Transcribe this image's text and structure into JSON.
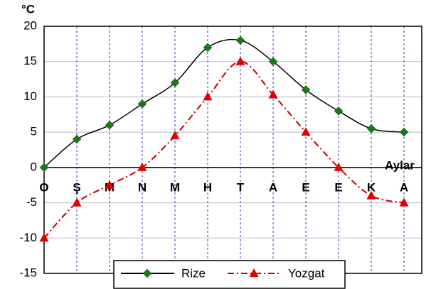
{
  "chart_data": {
    "type": "line",
    "y_label": "°C",
    "x_label": "Aylar",
    "categories": [
      "O",
      "Ş",
      "M",
      "N",
      "M",
      "H",
      "T",
      "A",
      "E",
      "E",
      "K",
      "A"
    ],
    "series": [
      {
        "name": "Rize",
        "color": "#000000",
        "marker_color": "#1a7a1a",
        "marker": "diamond",
        "line_style": "solid",
        "values": [
          0,
          4,
          6,
          9,
          12,
          17,
          18,
          15,
          11,
          8,
          5.5,
          5
        ]
      },
      {
        "name": "Yozgat",
        "color": "#c00000",
        "marker_color": "#e00000",
        "marker": "triangle",
        "line_style": "dashdot",
        "values": [
          -10,
          -5,
          -2.5,
          0,
          4.5,
          10,
          15,
          10.3,
          5,
          0,
          -4,
          -5
        ]
      }
    ],
    "ylim": [
      -15,
      20
    ],
    "yticks": [
      -15,
      -10,
      -5,
      0,
      5,
      10,
      15,
      20
    ],
    "grid": true,
    "legend": "bottom"
  }
}
